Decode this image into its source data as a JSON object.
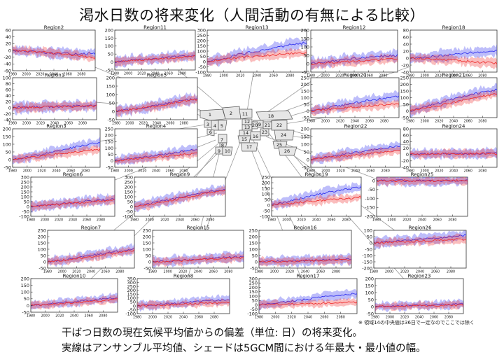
{
  "page": {
    "title": "渇水日数の将来変化（人間活動の有無による比較）",
    "footnote": "※ 領域14の中央値は36日で一定なのでここでは除く",
    "caption_line1": "干ばつ日数の現在気候平均値からの偏差（単位: 日）の将来変化。",
    "caption_line2": "実線はアンサンブル平均値、シェードは5GCM間における年最大・最小値の幅。"
  },
  "legend_colors": {
    "with_human_activity": "#3333ee",
    "without_human_activity": "#ee3333",
    "overlap": "#a040a0"
  },
  "map": {
    "region_numbers": [
      "1",
      "2",
      "3",
      "4",
      "5",
      "6",
      "7",
      "8",
      "9",
      "10",
      "11",
      "12",
      "13",
      "14",
      "15",
      "16",
      "17",
      "18",
      "19",
      "20",
      "21",
      "22",
      "23",
      "24",
      "25",
      "26"
    ]
  },
  "chart_data": [
    {
      "type": "line",
      "region": "Region2",
      "x_ticks": [
        "1980",
        "2000",
        "2020",
        "2040",
        "2060",
        "2080"
      ],
      "y_ticks": [
        "60",
        "40",
        "20",
        "0",
        "-20",
        "-40",
        "-60"
      ],
      "ylim": [
        -60,
        60
      ],
      "series": [
        {
          "values": [
            0,
            -3,
            -6,
            -9,
            -10,
            -10,
            -10
          ]
        },
        {
          "values": [
            0,
            -2,
            -4,
            -8,
            -12,
            -18,
            -22
          ]
        }
      ]
    },
    {
      "type": "line",
      "region": "Region11",
      "x_ticks": [
        "1980",
        "2000",
        "2020",
        "2040",
        "2060",
        "2080"
      ],
      "y_ticks": [
        "200",
        "150",
        "100",
        "50",
        "0",
        "-50"
      ],
      "ylim": [
        -50,
        200
      ],
      "series": [
        {
          "values": [
            0,
            10,
            15,
            22,
            30,
            35,
            40
          ]
        },
        {
          "values": [
            0,
            8,
            14,
            20,
            25,
            30,
            35
          ]
        }
      ]
    },
    {
      "type": "line",
      "region": "Region13",
      "x_ticks": [
        "1980",
        "2000",
        "2020",
        "2040",
        "2060",
        "2080"
      ],
      "y_ticks": [
        "300",
        "250",
        "200",
        "150",
        "100",
        "50",
        "0",
        "-50",
        "-100"
      ],
      "ylim": [
        -100,
        300
      ],
      "series": [
        {
          "values": [
            0,
            30,
            70,
            100,
            130,
            160,
            180
          ]
        },
        {
          "values": [
            0,
            20,
            40,
            55,
            65,
            75,
            80
          ]
        }
      ]
    },
    {
      "type": "line",
      "region": "Region12",
      "x_ticks": [
        "1980",
        "2000",
        "2020",
        "2040",
        "2060",
        "2080"
      ],
      "y_ticks": [
        "200",
        "150",
        "100",
        "50",
        "0",
        "-50"
      ],
      "ylim": [
        -50,
        200
      ],
      "series": [
        {
          "values": [
            0,
            10,
            20,
            30,
            40,
            45,
            50
          ]
        },
        {
          "values": [
            0,
            5,
            10,
            15,
            20,
            25,
            30
          ]
        }
      ]
    },
    {
      "type": "line",
      "region": "Region18",
      "x_ticks": [
        "1980",
        "2000",
        "2020",
        "2040",
        "2060",
        "2080"
      ],
      "y_ticks": [
        "80",
        "60",
        "40",
        "20",
        "0",
        "-20",
        "-40"
      ],
      "ylim": [
        -40,
        80
      ],
      "series": [
        {
          "values": [
            0,
            3,
            6,
            10,
            15,
            18,
            20
          ]
        },
        {
          "values": [
            0,
            -2,
            -4,
            -6,
            -10,
            -12,
            -15
          ]
        }
      ]
    },
    {
      "type": "line",
      "region": "Region1",
      "x_ticks": [
        "1980",
        "2000",
        "2020",
        "2040",
        "2060",
        "2080"
      ],
      "y_ticks": [
        "100",
        "80",
        "60",
        "40",
        "20",
        "0",
        "-20",
        "-40"
      ],
      "ylim": [
        -40,
        100
      ],
      "series": [
        {
          "values": [
            0,
            2,
            3,
            4,
            5,
            6,
            7
          ]
        },
        {
          "values": [
            0,
            1,
            2,
            3,
            4,
            5,
            6
          ]
        }
      ]
    },
    {
      "type": "line",
      "region": "Region5",
      "x_ticks": [
        "1980",
        "2000",
        "2020",
        "2040",
        "2060",
        "2080"
      ],
      "y_ticks": [
        "200",
        "150",
        "100",
        "50",
        "0",
        "-50"
      ],
      "ylim": [
        -50,
        200
      ],
      "series": [
        {
          "values": [
            0,
            10,
            20,
            35,
            50,
            65,
            75
          ]
        },
        {
          "values": [
            0,
            10,
            20,
            32,
            45,
            60,
            70
          ]
        }
      ]
    },
    {
      "type": "line",
      "region": "Region20",
      "x_ticks": [
        "1980",
        "2000",
        "2020",
        "2040",
        "2060",
        "2080"
      ],
      "y_ticks": [
        "250",
        "200",
        "150",
        "100",
        "50",
        "0",
        "-50"
      ],
      "ylim": [
        -50,
        250
      ],
      "series": [
        {
          "values": [
            0,
            20,
            40,
            60,
            80,
            95,
            110
          ]
        },
        {
          "values": [
            0,
            10,
            20,
            30,
            40,
            45,
            50
          ]
        }
      ]
    },
    {
      "type": "line",
      "region": "Region21",
      "x_ticks": [
        "1980",
        "2000",
        "2020",
        "2040",
        "2060",
        "2080"
      ],
      "y_ticks": [
        "250",
        "200",
        "150",
        "100",
        "50",
        "0",
        "-50"
      ],
      "ylim": [
        -50,
        250
      ],
      "series": [
        {
          "values": [
            0,
            30,
            60,
            90,
            120,
            140,
            160
          ]
        },
        {
          "values": [
            0,
            20,
            40,
            65,
            90,
            110,
            130
          ]
        }
      ]
    },
    {
      "type": "line",
      "region": "Region3",
      "x_ticks": [
        "1980",
        "2000",
        "2020",
        "2040",
        "2060",
        "2080"
      ],
      "y_ticks": [
        "200",
        "150",
        "100",
        "50",
        "0",
        "-50"
      ],
      "ylim": [
        -50,
        200
      ],
      "series": [
        {
          "values": [
            0,
            15,
            35,
            55,
            75,
            95,
            110
          ]
        },
        {
          "values": [
            0,
            10,
            22,
            35,
            48,
            58,
            65
          ]
        }
      ]
    },
    {
      "type": "line",
      "region": "Region4",
      "x_ticks": [
        "1980",
        "2000",
        "2020",
        "2040",
        "2060",
        "2080"
      ],
      "y_ticks": [
        "250",
        "200",
        "150",
        "100",
        "50",
        "0",
        "-50"
      ],
      "ylim": [
        -50,
        250
      ],
      "series": [
        {
          "values": [
            0,
            15,
            30,
            45,
            60,
            75,
            90
          ]
        },
        {
          "values": [
            0,
            10,
            20,
            30,
            40,
            50,
            60
          ]
        }
      ]
    },
    {
      "type": "line",
      "region": "Region22",
      "x_ticks": [
        "1980",
        "2000",
        "2020",
        "2040",
        "2060",
        "2080"
      ],
      "y_ticks": [
        "200",
        "150",
        "100",
        "50",
        "0",
        "-50"
      ],
      "ylim": [
        -50,
        200
      ],
      "series": [
        {
          "values": [
            0,
            15,
            30,
            45,
            60,
            75,
            90
          ]
        },
        {
          "values": [
            0,
            10,
            20,
            30,
            40,
            50,
            60
          ]
        }
      ]
    },
    {
      "type": "line",
      "region": "Region24",
      "x_ticks": [
        "1980",
        "2000",
        "2020",
        "2040",
        "2060",
        "2080"
      ],
      "y_ticks": [
        "80",
        "60",
        "40",
        "20",
        "0",
        "-20",
        "-40"
      ],
      "ylim": [
        -40,
        80
      ],
      "series": [
        {
          "values": [
            0,
            1,
            2,
            3,
            2,
            3,
            4
          ]
        },
        {
          "values": [
            0,
            1,
            1,
            2,
            2,
            3,
            3
          ]
        }
      ]
    },
    {
      "type": "line",
      "region": "Region6",
      "x_ticks": [
        "1980",
        "2000",
        "2020",
        "2040",
        "2060",
        "2080"
      ],
      "y_ticks": [
        "300",
        "250",
        "200",
        "150",
        "100",
        "50",
        "0",
        "-50",
        "-100"
      ],
      "ylim": [
        -100,
        300
      ],
      "series": [
        {
          "values": [
            0,
            10,
            25,
            40,
            55,
            65,
            75
          ]
        },
        {
          "values": [
            0,
            8,
            20,
            32,
            45,
            55,
            65
          ]
        }
      ]
    },
    {
      "type": "line",
      "region": "Region9",
      "x_ticks": [
        "1980",
        "2000",
        "2020",
        "2040",
        "2060",
        "2080"
      ],
      "y_ticks": [
        "300",
        "250",
        "200",
        "150",
        "100",
        "50",
        "0",
        "-50",
        "-100"
      ],
      "ylim": [
        -100,
        300
      ],
      "series": [
        {
          "values": [
            0,
            30,
            60,
            90,
            120,
            150,
            180
          ]
        },
        {
          "values": [
            0,
            25,
            50,
            80,
            110,
            140,
            165
          ]
        }
      ]
    },
    {
      "type": "line",
      "region": "Region19",
      "x_ticks": [
        "1980",
        "2000",
        "2020",
        "2040",
        "2060",
        "2080"
      ],
      "y_ticks": [
        "250",
        "200",
        "150",
        "100",
        "50",
        "0",
        "-50",
        "-100"
      ],
      "ylim": [
        -100,
        250
      ],
      "series": [
        {
          "values": [
            0,
            30,
            60,
            90,
            120,
            140,
            160
          ]
        },
        {
          "values": [
            0,
            12,
            25,
            38,
            50,
            60,
            70
          ]
        }
      ]
    },
    {
      "type": "line",
      "region": "Region25",
      "x_ticks": [
        "1980",
        "2000",
        "2020",
        "2040",
        "2060",
        "2080"
      ],
      "y_ticks": [
        "0",
        "-50",
        "-100",
        "-150",
        "-200"
      ],
      "ylim": [
        -200,
        20
      ],
      "series": [
        {
          "values": [
            0,
            0,
            0,
            0,
            0,
            0,
            0
          ]
        },
        {
          "values": [
            0,
            0,
            0,
            0,
            0,
            0,
            0
          ]
        }
      ]
    },
    {
      "type": "line",
      "region": "Region7",
      "x_ticks": [
        "1980",
        "2000",
        "2020",
        "2040",
        "2060",
        "2080"
      ],
      "y_ticks": [
        "250",
        "200",
        "150",
        "100",
        "50",
        "0",
        "-50"
      ],
      "ylim": [
        -50,
        250
      ],
      "series": [
        {
          "values": [
            0,
            15,
            30,
            50,
            70,
            85,
            100
          ]
        },
        {
          "values": [
            0,
            12,
            25,
            42,
            60,
            75,
            90
          ]
        }
      ]
    },
    {
      "type": "line",
      "region": "Region15",
      "x_ticks": [
        "1980",
        "2000",
        "2020",
        "2040",
        "2060",
        "2080"
      ],
      "y_ticks": [
        "250",
        "200",
        "150",
        "100",
        "50",
        "0",
        "-50"
      ],
      "ylim": [
        -50,
        250
      ],
      "series": [
        {
          "values": [
            0,
            5,
            12,
            20,
            28,
            35,
            40
          ]
        },
        {
          "values": [
            0,
            4,
            10,
            16,
            22,
            28,
            32
          ]
        }
      ]
    },
    {
      "type": "line",
      "region": "Region16",
      "x_ticks": [
        "1980",
        "2000",
        "2020",
        "2040",
        "2060",
        "2080"
      ],
      "y_ticks": [
        "250",
        "200",
        "150",
        "100",
        "50",
        "0",
        "-50"
      ],
      "ylim": [
        -50,
        250
      ],
      "series": [
        {
          "values": [
            0,
            3,
            6,
            10,
            14,
            18,
            20
          ]
        },
        {
          "values": [
            0,
            2,
            5,
            8,
            11,
            14,
            16
          ]
        }
      ]
    },
    {
      "type": "line",
      "region": "Region26",
      "x_ticks": [
        "1980",
        "2000",
        "2020",
        "2040",
        "2060",
        "2080"
      ],
      "y_ticks": [
        "100",
        "50",
        "0",
        "-50",
        "-100",
        "-150",
        "-200"
      ],
      "ylim": [
        -200,
        100
      ],
      "series": [
        {
          "values": [
            0,
            10,
            20,
            30,
            40,
            50,
            60
          ]
        },
        {
          "values": [
            0,
            5,
            10,
            15,
            20,
            25,
            30
          ]
        }
      ]
    },
    {
      "type": "line",
      "region": "Region10",
      "x_ticks": [
        "1980",
        "2000",
        "2020",
        "2040",
        "2060",
        "2080"
      ],
      "y_ticks": [
        "200",
        "150",
        "100",
        "50",
        "0",
        "-50"
      ],
      "ylim": [
        -50,
        200
      ],
      "series": [
        {
          "values": [
            0,
            8,
            18,
            28,
            38,
            48,
            55
          ]
        },
        {
          "values": [
            0,
            6,
            14,
            22,
            30,
            38,
            45
          ]
        }
      ]
    },
    {
      "type": "line",
      "region": "Region8",
      "x_ticks": [
        "1980",
        "2000",
        "2020",
        "2040",
        "2060",
        "2080"
      ],
      "y_ticks": [
        "350",
        "300",
        "250",
        "200",
        "150",
        "100",
        "50",
        "0",
        "-50",
        "-100"
      ],
      "ylim": [
        -100,
        350
      ],
      "series": [
        {
          "values": [
            0,
            10,
            25,
            40,
            55,
            70,
            80
          ]
        },
        {
          "values": [
            0,
            6,
            14,
            22,
            30,
            36,
            40
          ]
        }
      ]
    },
    {
      "type": "line",
      "region": "Region17",
      "x_ticks": [
        "1980",
        "2000",
        "2020",
        "2040",
        "2060",
        "2080"
      ],
      "y_ticks": [
        "300",
        "250",
        "200",
        "150",
        "100",
        "50",
        "0",
        "-50",
        "-100"
      ],
      "ylim": [
        -100,
        300
      ],
      "series": [
        {
          "values": [
            0,
            20,
            40,
            65,
            90,
            110,
            130
          ]
        },
        {
          "values": [
            0,
            5,
            10,
            15,
            20,
            25,
            30
          ]
        }
      ]
    },
    {
      "type": "line",
      "region": "Region23",
      "x_ticks": [
        "1980",
        "2000",
        "2020",
        "2040",
        "2060",
        "2080"
      ],
      "y_ticks": [
        "200",
        "150",
        "100",
        "50",
        "0",
        "-50"
      ],
      "ylim": [
        -50,
        200
      ],
      "series": [
        {
          "values": [
            0,
            3,
            6,
            9,
            12,
            15,
            18
          ]
        },
        {
          "values": [
            0,
            2,
            4,
            6,
            8,
            10,
            12
          ]
        }
      ]
    }
  ]
}
